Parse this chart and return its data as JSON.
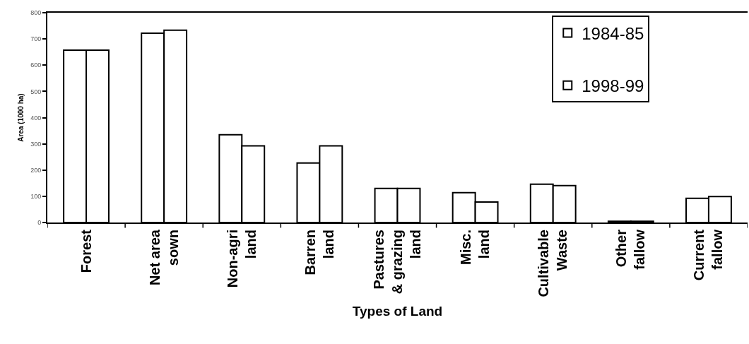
{
  "chart_data": {
    "type": "bar",
    "xlabel": "Types of Land",
    "ylabel": "Area (1000 ha)",
    "categories": [
      "Forest",
      "Net area\nsown",
      "Non-agri\nland",
      "Barren\nland",
      "Pastures\n& grazing\nland",
      "Misc.\nland",
      "Cultivable\nWaste",
      "Other\nfallow",
      "Current\nfallow"
    ],
    "series": [
      {
        "name": "1984-85",
        "color": "#ffffff",
        "values": [
          657,
          722,
          335,
          227,
          130,
          114,
          146,
          5,
          92
        ]
      },
      {
        "name": "1998-99",
        "color": "#ffffff",
        "values": [
          657,
          733,
          292,
          292,
          130,
          78,
          141,
          5,
          99
        ]
      }
    ],
    "ylim": [
      0,
      800
    ],
    "yticks": [
      0,
      100,
      200,
      300,
      400,
      500,
      600,
      700,
      800
    ],
    "grid": false,
    "legend": "top right"
  }
}
